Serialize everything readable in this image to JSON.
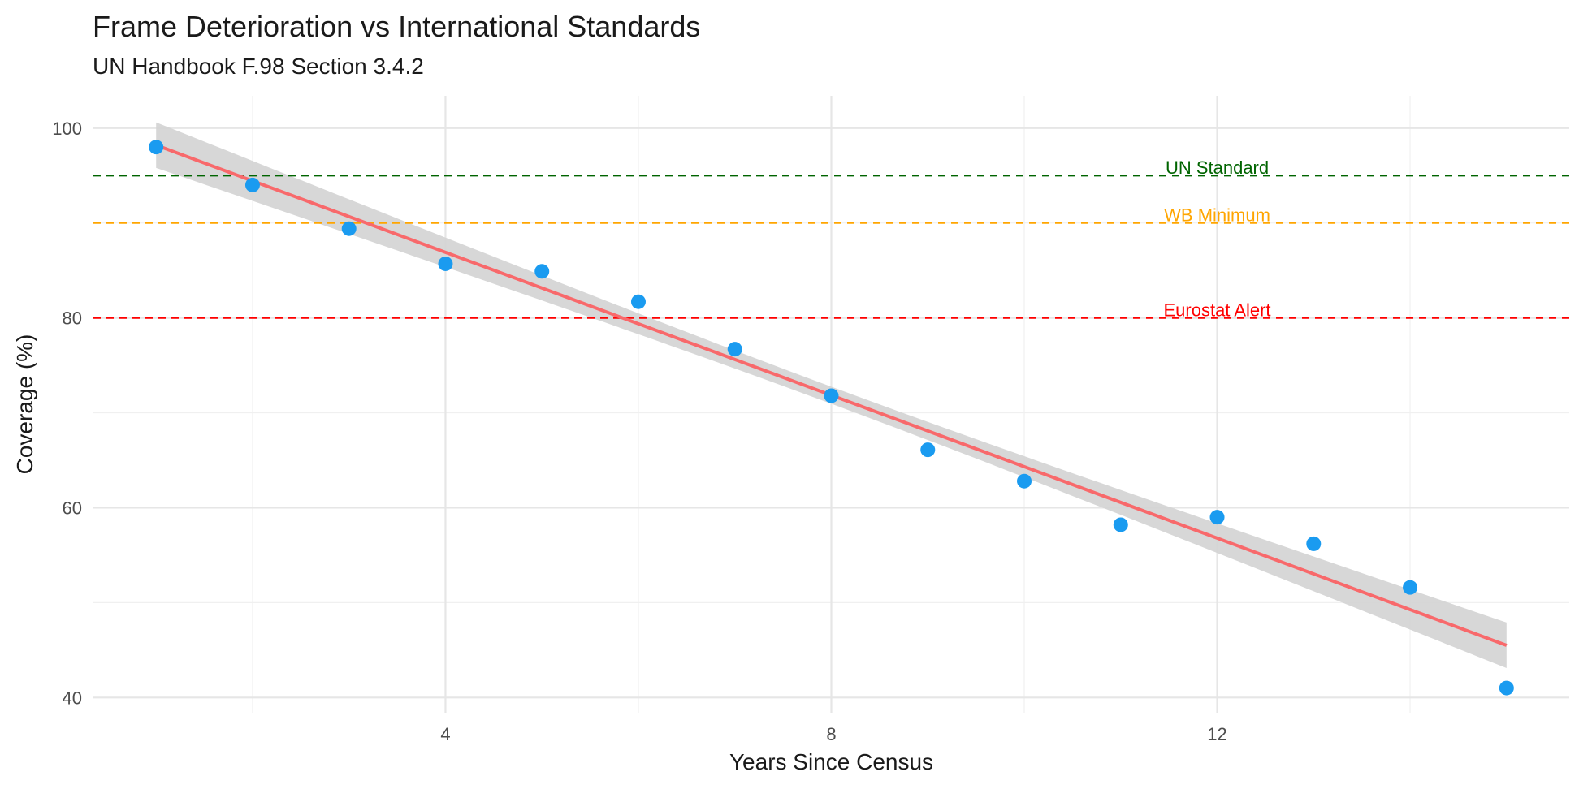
{
  "chart_data": {
    "type": "scatter",
    "title": "Frame Deterioration vs International Standards",
    "subtitle": "UN Handbook F.98 Section 3.4.2",
    "xlabel": "Years Since Census",
    "ylabel": "Coverage (%)",
    "xlim": [
      0.35,
      15.65
    ],
    "ylim": [
      38.4,
      103.4
    ],
    "x_ticks": [
      4,
      8,
      12
    ],
    "y_ticks": [
      40,
      60,
      80,
      100
    ],
    "grid": true,
    "legend": "none",
    "series": [
      {
        "type": "scatter",
        "color": "#1a9bf0",
        "x": [
          1,
          2,
          3,
          4,
          5,
          6,
          7,
          8,
          9,
          10,
          11,
          12,
          13,
          14,
          15
        ],
        "y": [
          98.0,
          94.0,
          89.4,
          85.7,
          84.9,
          81.7,
          76.7,
          71.8,
          66.1,
          62.8,
          58.2,
          59.0,
          56.2,
          51.6,
          41.0
        ]
      }
    ],
    "trend": {
      "type": "linear",
      "color": "#f8696b",
      "x": [
        1,
        15
      ],
      "y": [
        98.2,
        45.5
      ],
      "band_color": "#d3d3d3",
      "band_halfwidth_ends": 2.4,
      "band_halfwidth_mid": 0.9,
      "band_mid_x": 8
    },
    "reference_lines": [
      {
        "label": "UN Standard",
        "y": 95,
        "color": "#006400"
      },
      {
        "label": "WB Minimum",
        "y": 90,
        "color": "#ffa500"
      },
      {
        "label": "Eurostat Alert",
        "y": 80,
        "color": "#ff0000"
      }
    ],
    "reference_label_x": 12
  }
}
